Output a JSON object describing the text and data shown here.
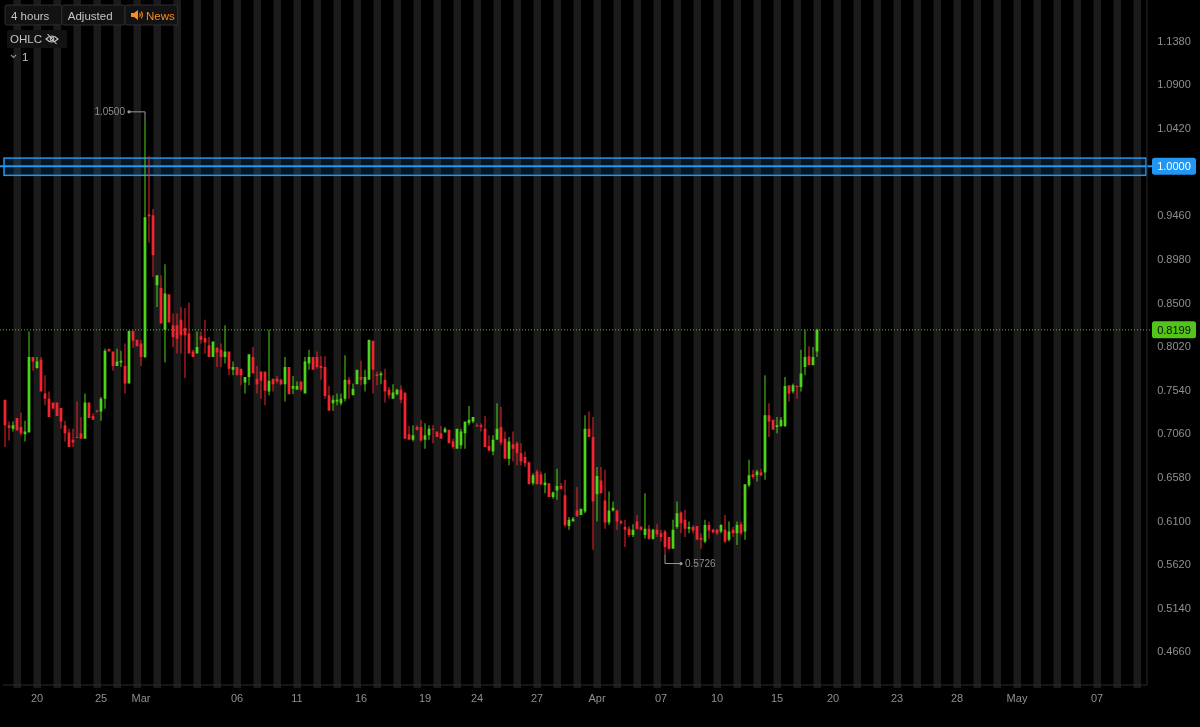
{
  "chart_data": {
    "type": "candlestick",
    "categories": [
      null,
      null,
      null,
      null,
      null,
      null,
      null,
      null,
      "20",
      null,
      null,
      null,
      null,
      null,
      null,
      null,
      null,
      null,
      null,
      null,
      null,
      null,
      null,
      null,
      "25",
      null,
      null,
      null,
      null,
      null,
      null,
      null,
      null,
      null,
      "Mar",
      null,
      null,
      null,
      null,
      null,
      null,
      null,
      null,
      null,
      null,
      null,
      null,
      null,
      null,
      null,
      null,
      null,
      null,
      null,
      null,
      null,
      null,
      null,
      "06",
      null,
      null,
      null,
      null,
      null,
      null,
      null,
      null,
      null,
      null,
      null,
      null,
      null,
      null,
      "11",
      null,
      null,
      null,
      null,
      null,
      null,
      null,
      null,
      null,
      null,
      null,
      null,
      null,
      null,
      null,
      "16",
      null,
      null,
      null,
      null,
      null,
      null,
      null,
      null,
      null,
      null,
      null,
      null,
      null,
      null,
      null,
      "19",
      null,
      null,
      null,
      null,
      null,
      null,
      null,
      null,
      null,
      null,
      null,
      null,
      "24",
      null,
      null,
      null,
      null,
      null,
      null,
      null,
      null,
      null,
      null,
      null,
      null,
      null,
      null,
      "27",
      null,
      null,
      null,
      null,
      null,
      null,
      null,
      null,
      null,
      null,
      null,
      null,
      null,
      null,
      "Apr",
      null,
      null,
      null,
      null,
      null,
      null,
      null,
      null,
      null,
      null,
      null,
      null,
      null,
      null,
      null,
      "07",
      null,
      null,
      null,
      null,
      null,
      null,
      null,
      null,
      null,
      null,
      null,
      null,
      null,
      "10",
      null,
      null,
      null,
      null,
      null,
      null,
      null,
      null,
      null,
      null,
      null,
      null,
      null,
      null,
      "15",
      null,
      null,
      null,
      null,
      null,
      null,
      null,
      null,
      null,
      null,
      null,
      null,
      null,
      "20",
      null,
      null,
      null,
      null,
      null,
      null,
      null,
      null,
      null,
      null,
      null,
      null,
      null,
      null,
      null,
      "23",
      null,
      null,
      null,
      null,
      null,
      null,
      null,
      null,
      null,
      null,
      null,
      null,
      null,
      null,
      "28",
      null,
      null,
      null,
      null,
      null,
      null,
      null,
      null,
      null,
      null,
      null,
      null,
      null,
      null,
      "May",
      null,
      null,
      null,
      null,
      null,
      null,
      null,
      null,
      null,
      null,
      null,
      null,
      null,
      null,
      null,
      null,
      null,
      null,
      null,
      "07",
      null,
      null,
      null,
      null,
      null,
      null,
      null,
      null,
      null,
      null,
      null,
      null
    ],
    "ohlc": [
      [
        0.743,
        0.743,
        0.691,
        0.715
      ],
      [
        0.715,
        0.719,
        0.698,
        0.712
      ],
      [
        0.711,
        0.719,
        0.708,
        0.715
      ],
      [
        0.723,
        0.723,
        0.709,
        0.709
      ],
      [
        0.713,
        0.729,
        0.704,
        0.706
      ],
      [
        0.705,
        0.72,
        0.697,
        0.708
      ],
      [
        0.707,
        0.818,
        0.707,
        0.79
      ],
      [
        0.79,
        0.79,
        0.775,
        0.785
      ],
      [
        0.778,
        0.79,
        0.777,
        0.785
      ],
      [
        0.787,
        0.79,
        0.752,
        0.752
      ],
      [
        0.75,
        0.77,
        0.737,
        0.744
      ],
      [
        0.744,
        0.752,
        0.724,
        0.724
      ],
      [
        0.74,
        0.74,
        0.733,
        0.733
      ],
      [
        0.74,
        0.74,
        0.725,
        0.725
      ],
      [
        0.734,
        0.734,
        0.711,
        0.719
      ],
      [
        0.715,
        0.72,
        0.697,
        0.706
      ],
      [
        0.707,
        0.711,
        0.691,
        0.691
      ],
      [
        0.699,
        0.711,
        0.691,
        0.696
      ],
      [
        0.702,
        0.741,
        0.701,
        0.701
      ],
      [
        0.706,
        0.724,
        0.7,
        0.7
      ],
      [
        0.7,
        0.75,
        0.7,
        0.74
      ],
      [
        0.74,
        0.74,
        0.723,
        0.723
      ],
      [
        0.725,
        0.728,
        0.721,
        0.721
      ],
      [
        0.731,
        0.732,
        0.729,
        0.73
      ],
      [
        0.73,
        0.746,
        0.72,
        0.744
      ],
      [
        0.744,
        0.799,
        0.733,
        0.797
      ],
      [
        0.799,
        0.799,
        0.796,
        0.796
      ],
      [
        0.796,
        0.796,
        0.775,
        0.78
      ],
      [
        0.78,
        0.799,
        0.78,
        0.785
      ],
      [
        0.784,
        0.797,
        0.779,
        0.786
      ],
      [
        0.78,
        0.805,
        0.75,
        0.761
      ],
      [
        0.761,
        0.819,
        0.761,
        0.819
      ],
      [
        0.819,
        0.819,
        0.8,
        0.808
      ],
      [
        0.809,
        0.809,
        0.802,
        0.802
      ],
      [
        0.805,
        0.809,
        0.78,
        0.79
      ],
      [
        0.79,
        1.05,
        0.789,
        0.944
      ],
      [
        0.947,
        1.011,
        0.916,
        0.945
      ],
      [
        0.946,
        0.953,
        0.878,
        0.902
      ],
      [
        0.869,
        0.88,
        0.845,
        0.88
      ],
      [
        0.866,
        0.88,
        0.827,
        0.827
      ],
      [
        0.82,
        0.892,
        0.784,
        0.86
      ],
      [
        0.859,
        0.859,
        0.828,
        0.828
      ],
      [
        0.825,
        0.838,
        0.801,
        0.812
      ],
      [
        0.825,
        0.838,
        0.794,
        0.81
      ],
      [
        0.831,
        0.845,
        0.794,
        0.814
      ],
      [
        0.822,
        0.844,
        0.767,
        0.814
      ],
      [
        0.816,
        0.85,
        0.794,
        0.794
      ],
      [
        0.796,
        0.798,
        0.79,
        0.79
      ],
      [
        0.794,
        0.818,
        0.794,
        0.801
      ],
      [
        0.813,
        0.818,
        0.805,
        0.809
      ],
      [
        0.811,
        0.831,
        0.794,
        0.806
      ],
      [
        0.803,
        0.812,
        0.79,
        0.79
      ],
      [
        0.79,
        0.807,
        0.79,
        0.807
      ],
      [
        0.8,
        0.801,
        0.779,
        0.795
      ],
      [
        0.798,
        0.805,
        0.779,
        0.79
      ],
      [
        0.79,
        0.825,
        0.783,
        0.796
      ],
      [
        0.796,
        0.796,
        0.77,
        0.777
      ],
      [
        0.776,
        0.785,
        0.77,
        0.779
      ],
      [
        0.779,
        0.779,
        0.77,
        0.77
      ],
      [
        0.777,
        0.777,
        0.759,
        0.77
      ],
      [
        0.762,
        0.768,
        0.75,
        0.768
      ],
      [
        0.768,
        0.793,
        0.759,
        0.793
      ],
      [
        0.79,
        0.801,
        0.772,
        0.772
      ],
      [
        0.766,
        0.78,
        0.75,
        0.76
      ],
      [
        0.774,
        0.774,
        0.744,
        0.764
      ],
      [
        0.774,
        0.774,
        0.737,
        0.753
      ],
      [
        0.752,
        0.82,
        0.748,
        0.764
      ],
      [
        0.766,
        0.766,
        0.752,
        0.76
      ],
      [
        0.766,
        0.769,
        0.761,
        0.763
      ],
      [
        0.765,
        0.766,
        0.759,
        0.76
      ],
      [
        0.76,
        0.79,
        0.741,
        0.779
      ],
      [
        0.779,
        0.779,
        0.749,
        0.749
      ],
      [
        0.755,
        0.769,
        0.749,
        0.758
      ],
      [
        0.754,
        0.763,
        0.754,
        0.758
      ],
      [
        0.763,
        0.763,
        0.752,
        0.754
      ],
      [
        0.75,
        0.79,
        0.75,
        0.785
      ],
      [
        0.783,
        0.798,
        0.776,
        0.79
      ],
      [
        0.79,
        0.79,
        0.776,
        0.776
      ],
      [
        0.79,
        0.796,
        0.777,
        0.779
      ],
      [
        0.78,
        0.791,
        0.765,
        0.778
      ],
      [
        0.779,
        0.791,
        0.744,
        0.747
      ],
      [
        0.748,
        0.758,
        0.731,
        0.731
      ],
      [
        0.739,
        0.748,
        0.731,
        0.743
      ],
      [
        0.741,
        0.75,
        0.737,
        0.743
      ],
      [
        0.739,
        0.75,
        0.737,
        0.744
      ],
      [
        0.744,
        0.792,
        0.741,
        0.765
      ],
      [
        0.765,
        0.768,
        0.744,
        0.76
      ],
      [
        0.748,
        0.761,
        0.748,
        0.755
      ],
      [
        0.76,
        0.776,
        0.76,
        0.776
      ],
      [
        0.768,
        0.786,
        0.759,
        0.765
      ],
      [
        0.76,
        0.776,
        0.752,
        0.768
      ],
      [
        0.765,
        0.809,
        0.765,
        0.809
      ],
      [
        0.808,
        0.808,
        0.75,
        0.776
      ],
      [
        0.771,
        0.774,
        0.759,
        0.769
      ],
      [
        0.77,
        0.774,
        0.76,
        0.772
      ],
      [
        0.765,
        0.777,
        0.74,
        0.752
      ],
      [
        0.754,
        0.757,
        0.744,
        0.748
      ],
      [
        0.744,
        0.76,
        0.744,
        0.751
      ],
      [
        0.749,
        0.755,
        0.748,
        0.754
      ],
      [
        0.754,
        0.759,
        0.739,
        0.743
      ],
      [
        0.751,
        0.751,
        0.7,
        0.7
      ],
      [
        0.705,
        0.714,
        0.699,
        0.699
      ],
      [
        0.699,
        0.715,
        0.697,
        0.704
      ],
      [
        0.713,
        0.715,
        0.709,
        0.71
      ],
      [
        0.713,
        0.721,
        0.697,
        0.698
      ],
      [
        0.699,
        0.717,
        0.689,
        0.704
      ],
      [
        0.704,
        0.715,
        0.699,
        0.711
      ],
      [
        0.711,
        0.715,
        0.695,
        0.71
      ],
      [
        0.708,
        0.708,
        0.702,
        0.702
      ],
      [
        0.706,
        0.714,
        0.7,
        0.7
      ],
      [
        0.707,
        0.713,
        0.707,
        0.711
      ],
      [
        0.71,
        0.71,
        0.695,
        0.695
      ],
      [
        0.697,
        0.7,
        0.689,
        0.691
      ],
      [
        0.689,
        0.711,
        0.689,
        0.711
      ],
      [
        0.693,
        0.711,
        0.689,
        0.708
      ],
      [
        0.706,
        0.719,
        0.689,
        0.719
      ],
      [
        0.717,
        0.736,
        0.715,
        0.721
      ],
      [
        0.719,
        0.724,
        0.717,
        0.724
      ],
      [
        0.715,
        0.717,
        0.713,
        0.714
      ],
      [
        0.715,
        0.717,
        0.708,
        0.713
      ],
      [
        0.711,
        0.725,
        0.691,
        0.691
      ],
      [
        0.692,
        0.704,
        0.686,
        0.687
      ],
      [
        0.686,
        0.704,
        0.682,
        0.699
      ],
      [
        0.699,
        0.739,
        0.699,
        0.711
      ],
      [
        0.713,
        0.735,
        0.693,
        0.696
      ],
      [
        0.7,
        0.708,
        0.678,
        0.678
      ],
      [
        0.678,
        0.702,
        0.671,
        0.697
      ],
      [
        0.694,
        0.708,
        0.675,
        0.689
      ],
      [
        0.695,
        0.697,
        0.671,
        0.684
      ],
      [
        0.684,
        0.695,
        0.671,
        0.675
      ],
      [
        0.68,
        0.686,
        0.669,
        0.673
      ],
      [
        0.674,
        0.675,
        0.65,
        0.65
      ],
      [
        0.651,
        0.662,
        0.649,
        0.66
      ],
      [
        0.664,
        0.666,
        0.65,
        0.65
      ],
      [
        0.661,
        0.664,
        0.649,
        0.65
      ],
      [
        0.649,
        0.662,
        0.64,
        0.652
      ],
      [
        0.651,
        0.651,
        0.636,
        0.636
      ],
      [
        0.636,
        0.642,
        0.634,
        0.641
      ],
      [
        0.643,
        0.667,
        0.633,
        0.648
      ],
      [
        0.648,
        0.651,
        0.644,
        0.645
      ],
      [
        0.638,
        0.655,
        0.603,
        0.605
      ],
      [
        0.604,
        0.614,
        0.6,
        0.611
      ],
      [
        0.609,
        0.614,
        0.609,
        0.612
      ],
      [
        0.621,
        0.647,
        0.614,
        0.615
      ],
      [
        0.616,
        0.623,
        0.616,
        0.623
      ],
      [
        0.62,
        0.726,
        0.618,
        0.711
      ],
      [
        0.711,
        0.73,
        0.702,
        0.702
      ],
      [
        0.702,
        0.724,
        0.578,
        0.631
      ],
      [
        0.639,
        0.669,
        0.609,
        0.659
      ],
      [
        0.654,
        0.669,
        0.64,
        0.64
      ],
      [
        0.632,
        0.666,
        0.601,
        0.608
      ],
      [
        0.608,
        0.642,
        0.605,
        0.621
      ],
      [
        0.621,
        0.631,
        0.62,
        0.624
      ],
      [
        0.621,
        0.622,
        0.6,
        0.609
      ],
      [
        0.609,
        0.611,
        0.606,
        0.607
      ],
      [
        0.603,
        0.611,
        0.581,
        0.6
      ],
      [
        0.601,
        0.604,
        0.592,
        0.594
      ],
      [
        0.594,
        0.606,
        0.592,
        0.6
      ],
      [
        0.609,
        0.616,
        0.6,
        0.601
      ],
      [
        0.603,
        0.604,
        0.599,
        0.6
      ],
      [
        0.594,
        0.64,
        0.59,
        0.601
      ],
      [
        0.601,
        0.605,
        0.589,
        0.59
      ],
      [
        0.59,
        0.601,
        0.589,
        0.6
      ],
      [
        0.6,
        0.606,
        0.592,
        0.595
      ],
      [
        0.596,
        0.6,
        0.587,
        0.592
      ],
      [
        0.598,
        0.6,
        0.5726,
        0.581
      ],
      [
        0.592,
        0.592,
        0.578,
        0.579
      ],
      [
        0.579,
        0.611,
        0.579,
        0.6
      ],
      [
        0.603,
        0.631,
        0.601,
        0.618
      ],
      [
        0.619,
        0.62,
        0.596,
        0.607
      ],
      [
        0.611,
        0.622,
        0.592,
        0.601
      ],
      [
        0.601,
        0.609,
        0.596,
        0.603
      ],
      [
        0.603,
        0.605,
        0.596,
        0.599
      ],
      [
        0.604,
        0.604,
        0.589,
        0.589
      ],
      [
        0.591,
        0.596,
        0.579,
        0.589
      ],
      [
        0.587,
        0.611,
        0.585,
        0.605
      ],
      [
        0.605,
        0.609,
        0.59,
        0.599
      ],
      [
        0.6,
        0.601,
        0.596,
        0.597
      ],
      [
        0.6,
        0.601,
        0.594,
        0.596
      ],
      [
        0.598,
        0.606,
        0.596,
        0.605
      ],
      [
        0.6,
        0.616,
        0.585,
        0.587
      ],
      [
        0.589,
        0.609,
        0.587,
        0.598
      ],
      [
        0.6,
        0.603,
        0.592,
        0.596
      ],
      [
        0.596,
        0.609,
        0.583,
        0.605
      ],
      [
        0.606,
        0.609,
        0.594,
        0.596
      ],
      [
        0.598,
        0.65,
        0.589,
        0.65
      ],
      [
        0.649,
        0.677,
        0.647,
        0.66
      ],
      [
        0.661,
        0.666,
        0.656,
        0.658
      ],
      [
        0.66,
        0.666,
        0.653,
        0.664
      ],
      [
        0.663,
        0.667,
        0.659,
        0.66
      ],
      [
        0.663,
        0.77,
        0.655,
        0.726
      ],
      [
        0.726,
        0.739,
        0.702,
        0.719
      ],
      [
        0.721,
        0.721,
        0.71,
        0.71
      ],
      [
        0.713,
        0.724,
        0.706,
        0.715
      ],
      [
        0.714,
        0.724,
        0.713,
        0.721
      ],
      [
        0.714,
        0.768,
        0.713,
        0.758
      ],
      [
        0.759,
        0.759,
        0.741,
        0.75
      ],
      [
        0.752,
        0.761,
        0.75,
        0.759
      ],
      [
        0.758,
        0.759,
        0.744,
        0.757
      ],
      [
        0.757,
        0.798,
        0.752,
        0.772
      ],
      [
        0.779,
        0.82,
        0.77,
        0.79
      ],
      [
        0.791,
        0.802,
        0.781,
        0.781
      ],
      [
        0.781,
        0.801,
        0.781,
        0.79
      ],
      [
        0.796,
        0.821,
        0.79,
        0.82
      ],
      null,
      null,
      null,
      null,
      null,
      null,
      null,
      null,
      null,
      null,
      null,
      null,
      null,
      null,
      null,
      null,
      null,
      null,
      null,
      null,
      null,
      null,
      null,
      null,
      null,
      null,
      null,
      null,
      null,
      null,
      null,
      null,
      null,
      null,
      null,
      null,
      null,
      null,
      null,
      null,
      null,
      null,
      null,
      null,
      null,
      null,
      null,
      null,
      null,
      null,
      null,
      null,
      null,
      null,
      null,
      null,
      null,
      null,
      null,
      null,
      null,
      null,
      null,
      null,
      null,
      null,
      null,
      null,
      null,
      null,
      null,
      null,
      null,
      null,
      null,
      null,
      null,
      null,
      null,
      null,
      null,
      null
    ],
    "colors": [
      "#f2242f",
      "#f2242f",
      "#4ed31b",
      "#f2242f",
      "#f2242f",
      "#4ed31b",
      "#4ed31b",
      "#f2242f",
      "#4ed31b",
      "#f2242f",
      "#f2242f",
      "#f2242f",
      "#f2242f",
      "#f2242f",
      "#f2242f",
      "#f2242f",
      "#f2242f",
      "#f2242f",
      "#f2242f",
      "#f2242f",
      "#4ed31b",
      "#f2242f",
      "#f2242f",
      "#f2242f",
      "#4ed31b",
      "#4ed31b",
      "#f2242f",
      "#f2242f",
      "#4ed31b",
      "#4ed31b",
      "#f2242f",
      "#4ed31b",
      "#f2242f",
      "#f2242f",
      "#f2242f",
      "#4ed31b",
      "#f2242f",
      "#f2242f",
      "#4ed31b",
      "#f2242f",
      "#4ed31b",
      "#f2242f",
      "#f2242f",
      "#f2242f",
      "#f2242f",
      "#f2242f",
      "#f2242f",
      "#f2242f",
      "#4ed31b",
      "#f2242f",
      "#f2242f",
      "#f2242f",
      "#4ed31b",
      "#f2242f",
      "#f2242f",
      "#4ed31b",
      "#f2242f",
      "#4ed31b",
      "#f2242f",
      "#f2242f",
      "#4ed31b",
      "#4ed31b",
      "#f2242f",
      "#f2242f",
      "#f2242f",
      "#f2242f",
      "#4ed31b",
      "#f2242f",
      "#f2242f",
      "#f2242f",
      "#4ed31b",
      "#f2242f",
      "#4ed31b",
      "#4ed31b",
      "#f2242f",
      "#4ed31b",
      "#4ed31b",
      "#f2242f",
      "#f2242f",
      "#f2242f",
      "#f2242f",
      "#f2242f",
      "#4ed31b",
      "#4ed31b",
      "#4ed31b",
      "#4ed31b",
      "#f2242f",
      "#4ed31b",
      "#4ed31b",
      "#f2242f",
      "#4ed31b",
      "#4ed31b",
      "#f2242f",
      "#f2242f",
      "#4ed31b",
      "#f2242f",
      "#f2242f",
      "#4ed31b",
      "#4ed31b",
      "#f2242f",
      "#f2242f",
      "#f2242f",
      "#4ed31b",
      "#f2242f",
      "#f2242f",
      "#4ed31b",
      "#4ed31b",
      "#f2242f",
      "#f2242f",
      "#f2242f",
      "#4ed31b",
      "#f2242f",
      "#f2242f",
      "#4ed31b",
      "#4ed31b",
      "#4ed31b",
      "#4ed31b",
      "#4ed31b",
      "#f2242f",
      "#f2242f",
      "#f2242f",
      "#f2242f",
      "#4ed31b",
      "#4ed31b",
      "#f2242f",
      "#f2242f",
      "#4ed31b",
      "#f2242f",
      "#f2242f",
      "#f2242f",
      "#f2242f",
      "#f2242f",
      "#4ed31b",
      "#f2242f",
      "#f2242f",
      "#4ed31b",
      "#f2242f",
      "#4ed31b",
      "#4ed31b",
      "#f2242f",
      "#f2242f",
      "#4ed31b",
      "#4ed31b",
      "#f2242f",
      "#4ed31b",
      "#4ed31b",
      "#f2242f",
      "#f2242f",
      "#4ed31b",
      "#f2242f",
      "#f2242f",
      "#4ed31b",
      "#4ed31b",
      "#f2242f",
      "#f2242f",
      "#f2242f",
      "#f2242f",
      "#4ed31b",
      "#f2242f",
      "#f2242f",
      "#4ed31b",
      "#f2242f",
      "#4ed31b",
      "#f2242f",
      "#f2242f",
      "#f2242f",
      "#f2242f",
      "#4ed31b",
      "#4ed31b",
      "#f2242f",
      "#f2242f",
      "#4ed31b",
      "#f2242f",
      "#f2242f",
      "#f2242f",
      "#4ed31b",
      "#f2242f",
      "#f2242f",
      "#f2242f",
      "#4ed31b",
      "#f2242f",
      "#4ed31b",
      "#f2242f",
      "#4ed31b",
      "#f2242f",
      "#4ed31b",
      "#4ed31b",
      "#f2242f",
      "#4ed31b",
      "#f2242f",
      "#4ed31b",
      "#f2242f",
      "#f2242f",
      "#4ed31b",
      "#4ed31b",
      "#4ed31b",
      "#f2242f",
      "#4ed31b",
      "#f2242f",
      "#4ed31b",
      "#4ed31b",
      "#f2242f",
      "#4ed31b",
      "#4ed31b",
      null,
      null,
      null,
      null,
      null,
      null,
      null,
      null,
      null,
      null,
      null,
      null,
      null,
      null,
      null,
      null,
      null,
      null,
      null,
      null,
      null,
      null,
      null,
      null,
      null,
      null,
      null,
      null,
      null,
      null,
      null,
      null,
      null,
      null,
      null,
      null,
      null,
      null,
      null,
      null,
      null,
      null,
      null,
      null,
      null,
      null,
      null,
      null,
      null,
      null,
      null,
      null,
      null,
      null,
      null,
      null,
      null,
      null,
      null,
      null,
      null,
      null,
      null,
      null,
      null,
      null,
      null,
      null,
      null,
      null,
      null,
      null,
      null,
      null,
      null,
      null,
      null,
      null,
      null,
      null,
      null,
      null
    ],
    "ylim": [
      0.429,
      1.183
    ],
    "yticks": [
      {
        "value": 0.466,
        "label": "0.4660"
      },
      {
        "value": 0.514,
        "label": "0.5140"
      },
      {
        "value": 0.562,
        "label": "0.5620"
      },
      {
        "value": 0.61,
        "label": "0.6100"
      },
      {
        "value": 0.658,
        "label": "0.6580"
      },
      {
        "value": 0.706,
        "label": "0.7060"
      },
      {
        "value": 0.754,
        "label": "0.7540"
      },
      {
        "value": 0.802,
        "label": "0.8020"
      },
      {
        "value": 0.85,
        "label": "0.8500"
      },
      {
        "value": 0.898,
        "label": "0.8980"
      },
      {
        "value": 0.946,
        "label": "0.9460"
      },
      {
        "value": 1.042,
        "label": "1.0420"
      },
      {
        "value": 1.09,
        "label": "1.0900"
      },
      {
        "value": 1.138,
        "label": "1.1380"
      }
    ],
    "ref_lines": [
      {
        "axis": "y",
        "value": 1,
        "label": "1.0000",
        "color": "#2196f3",
        "line_style": "solid"
      },
      {
        "axis": "y",
        "value": 0.8199,
        "label": "0.8199",
        "color": "#52c41a",
        "line_style": "dotted"
      }
    ],
    "bands": [
      {
        "axis": "y",
        "from": 0.99,
        "to": 1.009,
        "color": "#2196f3"
      }
    ],
    "annotations": [
      "4 hours",
      "Adjusted",
      "News",
      "OHLC",
      "1",
      "1.0500",
      "0.5726"
    ]
  }
}
